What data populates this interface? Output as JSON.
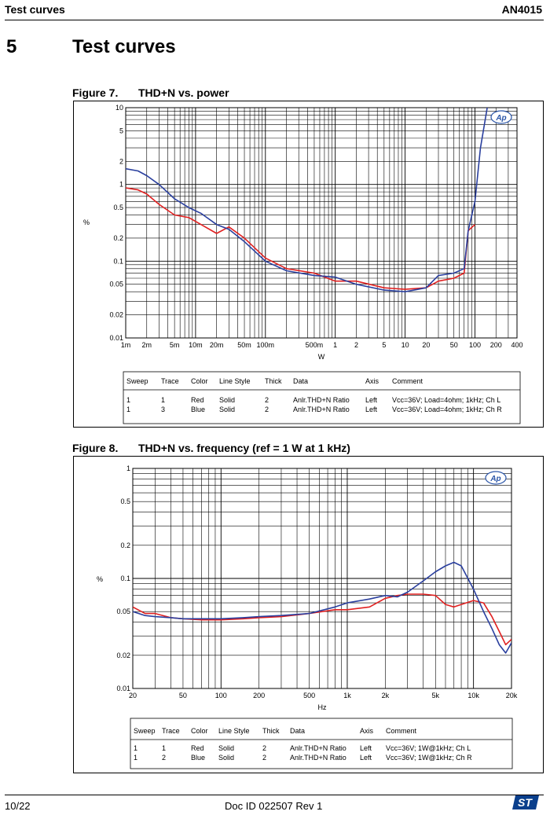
{
  "header": {
    "left": "Test curves",
    "right": "AN4015"
  },
  "section": {
    "number": "5",
    "title": "Test curves"
  },
  "colors": {
    "red": "#e02020",
    "blue": "#2a3f9e",
    "grid": "#000000"
  },
  "figures": [
    {
      "label": "Figure 7.",
      "title": "THD+N vs. power"
    },
    {
      "label": "Figure 8.",
      "title": "THD+N vs. frequency (ref = 1 W at 1 kHz)"
    }
  ],
  "chart_data": [
    {
      "type": "line",
      "title": "THD+N vs. power",
      "xlabel": "W",
      "ylabel": "%",
      "xscale": "log",
      "yscale": "log",
      "xlim": [
        0.001,
        400
      ],
      "ylim": [
        0.01,
        10
      ],
      "xticks": [
        0.001,
        0.002,
        0.005,
        0.01,
        0.02,
        0.05,
        0.1,
        0.5,
        1,
        2,
        5,
        10,
        20,
        50,
        100,
        200,
        400
      ],
      "xtick_labels": [
        "1m",
        "2m",
        "5m",
        "10m",
        "20m",
        "50m",
        "100m",
        "500m",
        "1",
        "2",
        "5",
        "10",
        "20",
        "50",
        "100",
        "200",
        "400"
      ],
      "yticks": [
        0.01,
        0.02,
        0.05,
        0.1,
        0.2,
        0.5,
        1,
        2,
        5,
        10
      ],
      "ytick_labels": [
        "0.01",
        "0.02",
        "0.05",
        "0.1",
        "0.2",
        "0.5",
        "1",
        "2",
        "5",
        "10"
      ],
      "series": [
        {
          "name": "Red (Ch L)",
          "color": "red",
          "x": [
            0.001,
            0.0015,
            0.002,
            0.003,
            0.005,
            0.008,
            0.012,
            0.02,
            0.03,
            0.05,
            0.1,
            0.2,
            0.5,
            1,
            2,
            5,
            10,
            20,
            30,
            50,
            70,
            80,
            100
          ],
          "y": [
            0.9,
            0.85,
            0.75,
            0.55,
            0.4,
            0.37,
            0.3,
            0.23,
            0.28,
            0.2,
            0.11,
            0.08,
            0.07,
            0.055,
            0.055,
            0.045,
            0.043,
            0.045,
            0.055,
            0.06,
            0.07,
            0.25,
            0.3
          ]
        },
        {
          "name": "Blue (Ch R)",
          "color": "blue",
          "x": [
            0.001,
            0.0015,
            0.002,
            0.003,
            0.005,
            0.008,
            0.012,
            0.02,
            0.03,
            0.05,
            0.1,
            0.2,
            0.5,
            1,
            2,
            5,
            10,
            20,
            30,
            50,
            70,
            80,
            100,
            120,
            150
          ],
          "y": [
            1.6,
            1.5,
            1.3,
            1.0,
            0.65,
            0.5,
            0.42,
            0.3,
            0.26,
            0.18,
            0.1,
            0.075,
            0.065,
            0.062,
            0.05,
            0.042,
            0.04,
            0.045,
            0.065,
            0.07,
            0.08,
            0.25,
            0.6,
            3,
            10
          ]
        }
      ],
      "legend": {
        "headers": [
          "Sweep",
          "Trace",
          "Color",
          "Line Style",
          "Thick",
          "Data",
          "Axis",
          "Comment"
        ],
        "rows": [
          [
            "1",
            "1",
            "Red",
            "Solid",
            "2",
            "Anlr.THD+N Ratio",
            "Left",
            "Vcc=36V; Load=4ohm; 1kHz; Ch L"
          ],
          [
            "1",
            "3",
            "Blue",
            "Solid",
            "2",
            "Anlr.THD+N Ratio",
            "Left",
            "Vcc=36V; Load=4ohm; 1kHz; Ch R"
          ]
        ]
      }
    },
    {
      "type": "line",
      "title": "THD+N vs. frequency (ref = 1 W at 1 kHz)",
      "xlabel": "Hz",
      "ylabel": "%",
      "xscale": "log",
      "yscale": "log",
      "xlim": [
        20,
        20000
      ],
      "ylim": [
        0.01,
        1
      ],
      "xticks": [
        20,
        50,
        100,
        200,
        500,
        1000,
        2000,
        5000,
        10000,
        20000
      ],
      "xtick_labels": [
        "20",
        "50",
        "100",
        "200",
        "500",
        "1k",
        "2k",
        "5k",
        "10k",
        "20k"
      ],
      "yticks": [
        0.01,
        0.02,
        0.05,
        0.1,
        0.2,
        0.5,
        1
      ],
      "ytick_labels": [
        "0.01",
        "0.02",
        "0.05",
        "0.1",
        "0.2",
        "0.5",
        "1"
      ],
      "series": [
        {
          "name": "Red (Ch L)",
          "color": "red",
          "x": [
            20,
            25,
            30,
            40,
            50,
            70,
            100,
            150,
            200,
            300,
            500,
            800,
            1000,
            1500,
            2000,
            2500,
            3000,
            4000,
            5000,
            6000,
            7000,
            8000,
            10000,
            12000,
            14000,
            16000,
            18000,
            20000
          ],
          "y": [
            0.055,
            0.048,
            0.048,
            0.044,
            0.043,
            0.042,
            0.042,
            0.043,
            0.044,
            0.045,
            0.048,
            0.052,
            0.052,
            0.055,
            0.066,
            0.07,
            0.072,
            0.072,
            0.07,
            0.058,
            0.055,
            0.058,
            0.063,
            0.06,
            0.045,
            0.033,
            0.025,
            0.028
          ]
        },
        {
          "name": "Blue (Ch R)",
          "color": "blue",
          "x": [
            20,
            25,
            30,
            40,
            50,
            70,
            100,
            150,
            200,
            300,
            500,
            800,
            1000,
            1500,
            2000,
            2500,
            3000,
            4000,
            5000,
            6000,
            7000,
            8000,
            10000,
            12000,
            14000,
            16000,
            18000,
            20000
          ],
          "y": [
            0.05,
            0.046,
            0.045,
            0.044,
            0.043,
            0.043,
            0.043,
            0.044,
            0.045,
            0.046,
            0.048,
            0.055,
            0.06,
            0.065,
            0.07,
            0.068,
            0.075,
            0.095,
            0.115,
            0.13,
            0.14,
            0.13,
            0.08,
            0.05,
            0.035,
            0.025,
            0.021,
            0.026
          ]
        }
      ],
      "legend": {
        "headers": [
          "Sweep",
          "Trace",
          "Color",
          "Line Style",
          "Thick",
          "Data",
          "Axis",
          "Comment"
        ],
        "rows": [
          [
            "1",
            "1",
            "Red",
            "Solid",
            "2",
            "Anlr.THD+N Ratio",
            "Left",
            "Vcc=36V; 1W@1kHz; Ch L"
          ],
          [
            "1",
            "2",
            "Blue",
            "Solid",
            "2",
            "Anlr.THD+N Ratio",
            "Left",
            "Vcc=36V; 1W@1kHz; Ch R"
          ]
        ]
      }
    }
  ],
  "footer": {
    "page": "10/22",
    "doc_id": "Doc ID 022507 Rev 1"
  },
  "logo_badge": "Ap"
}
